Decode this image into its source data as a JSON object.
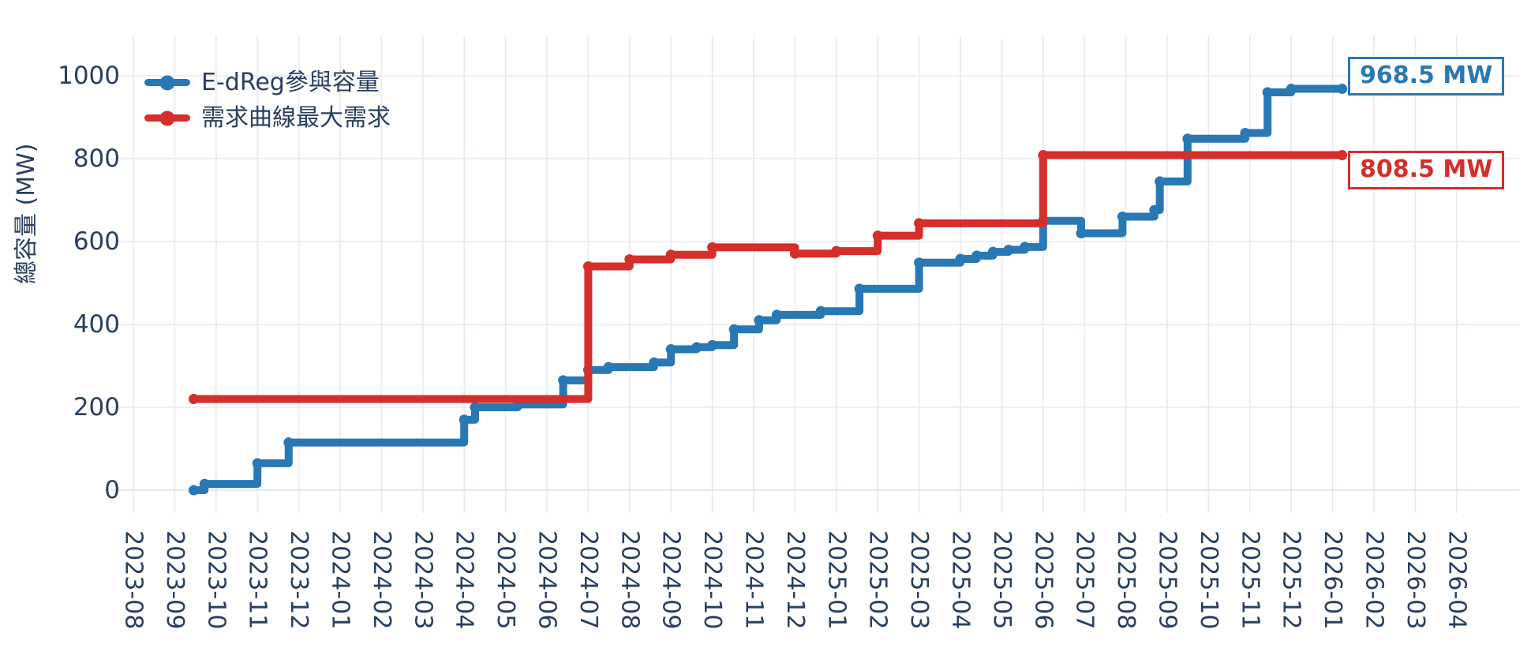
{
  "chart_data": {
    "type": "line",
    "step_mode": "hv",
    "title": "",
    "xlabel": "",
    "ylabel": "總容量 (MW)",
    "grid": true,
    "legend_position": "top-left-inside",
    "ylim": [
      0,
      1050
    ],
    "y_ticks": [
      0,
      200,
      400,
      600,
      800,
      1000
    ],
    "x_ticks": [
      "2023-08",
      "2023-09",
      "2023-10",
      "2023-11",
      "2023-12",
      "2024-01",
      "2024-02",
      "2024-03",
      "2024-04",
      "2024-05",
      "2024-06",
      "2024-07",
      "2024-08",
      "2024-09",
      "2024-10",
      "2024-11",
      "2024-12",
      "2025-01",
      "2025-02",
      "2025-03",
      "2025-04",
      "2025-05",
      "2025-06",
      "2025-07",
      "2025-08",
      "2025-09",
      "2025-10",
      "2025-11",
      "2025-12",
      "2026-01",
      "2026-02",
      "2026-03",
      "2026-04"
    ],
    "text_color": "#2a3f5f",
    "grid_color": "#e7eaf2",
    "series": [
      {
        "name": "E-dReg參與容量",
        "color": "#2878b5",
        "final_label": "968.5 MW",
        "points": [
          [
            "2023-09-15",
            0
          ],
          [
            "2023-09-23",
            15
          ],
          [
            "2023-11-01",
            65
          ],
          [
            "2023-11-24",
            115
          ],
          [
            "2024-04-01",
            170
          ],
          [
            "2024-04-09",
            200
          ],
          [
            "2024-05-10",
            207
          ],
          [
            "2024-06-13",
            265
          ],
          [
            "2024-07-01",
            290
          ],
          [
            "2024-07-16",
            297
          ],
          [
            "2024-08-19",
            308
          ],
          [
            "2024-09-01",
            340
          ],
          [
            "2024-09-20",
            345
          ],
          [
            "2024-10-01",
            350
          ],
          [
            "2024-10-17",
            388
          ],
          [
            "2024-11-05",
            410
          ],
          [
            "2024-11-18",
            423
          ],
          [
            "2024-12-20",
            432
          ],
          [
            "2025-01-18",
            486
          ],
          [
            "2025-03-01",
            549
          ],
          [
            "2025-04-01",
            558
          ],
          [
            "2025-04-13",
            566
          ],
          [
            "2025-04-25",
            575
          ],
          [
            "2025-05-06",
            580
          ],
          [
            "2025-05-18",
            587
          ],
          [
            "2025-06-01",
            650
          ],
          [
            "2025-06-29",
            620
          ],
          [
            "2025-07-29",
            660
          ],
          [
            "2025-08-22",
            676
          ],
          [
            "2025-08-26",
            745
          ],
          [
            "2025-09-16",
            848
          ],
          [
            "2025-10-28",
            862
          ],
          [
            "2025-11-14",
            960
          ],
          [
            "2025-12-01",
            968.5
          ],
          [
            "2026-01-08",
            968.5
          ]
        ]
      },
      {
        "name": "需求曲線最大需求",
        "color": "#d62e2b",
        "final_label": "808.5 MW",
        "points": [
          [
            "2023-09-15",
            220
          ],
          [
            "2024-07-01",
            540
          ],
          [
            "2024-08-01",
            557
          ],
          [
            "2024-09-01",
            568
          ],
          [
            "2024-10-01",
            586
          ],
          [
            "2024-12-01",
            571
          ],
          [
            "2025-01-01",
            577
          ],
          [
            "2025-02-01",
            614
          ],
          [
            "2025-03-01",
            644
          ],
          [
            "2025-06-01",
            808.5
          ],
          [
            "2026-01-08",
            808.5
          ]
        ]
      }
    ],
    "annotations": [
      {
        "text": "968.5 MW",
        "series": "E-dReg參與容量",
        "color": "#2878b5"
      },
      {
        "text": "808.5 MW",
        "series": "需求曲線最大需求",
        "color": "#d62e2b"
      }
    ]
  }
}
